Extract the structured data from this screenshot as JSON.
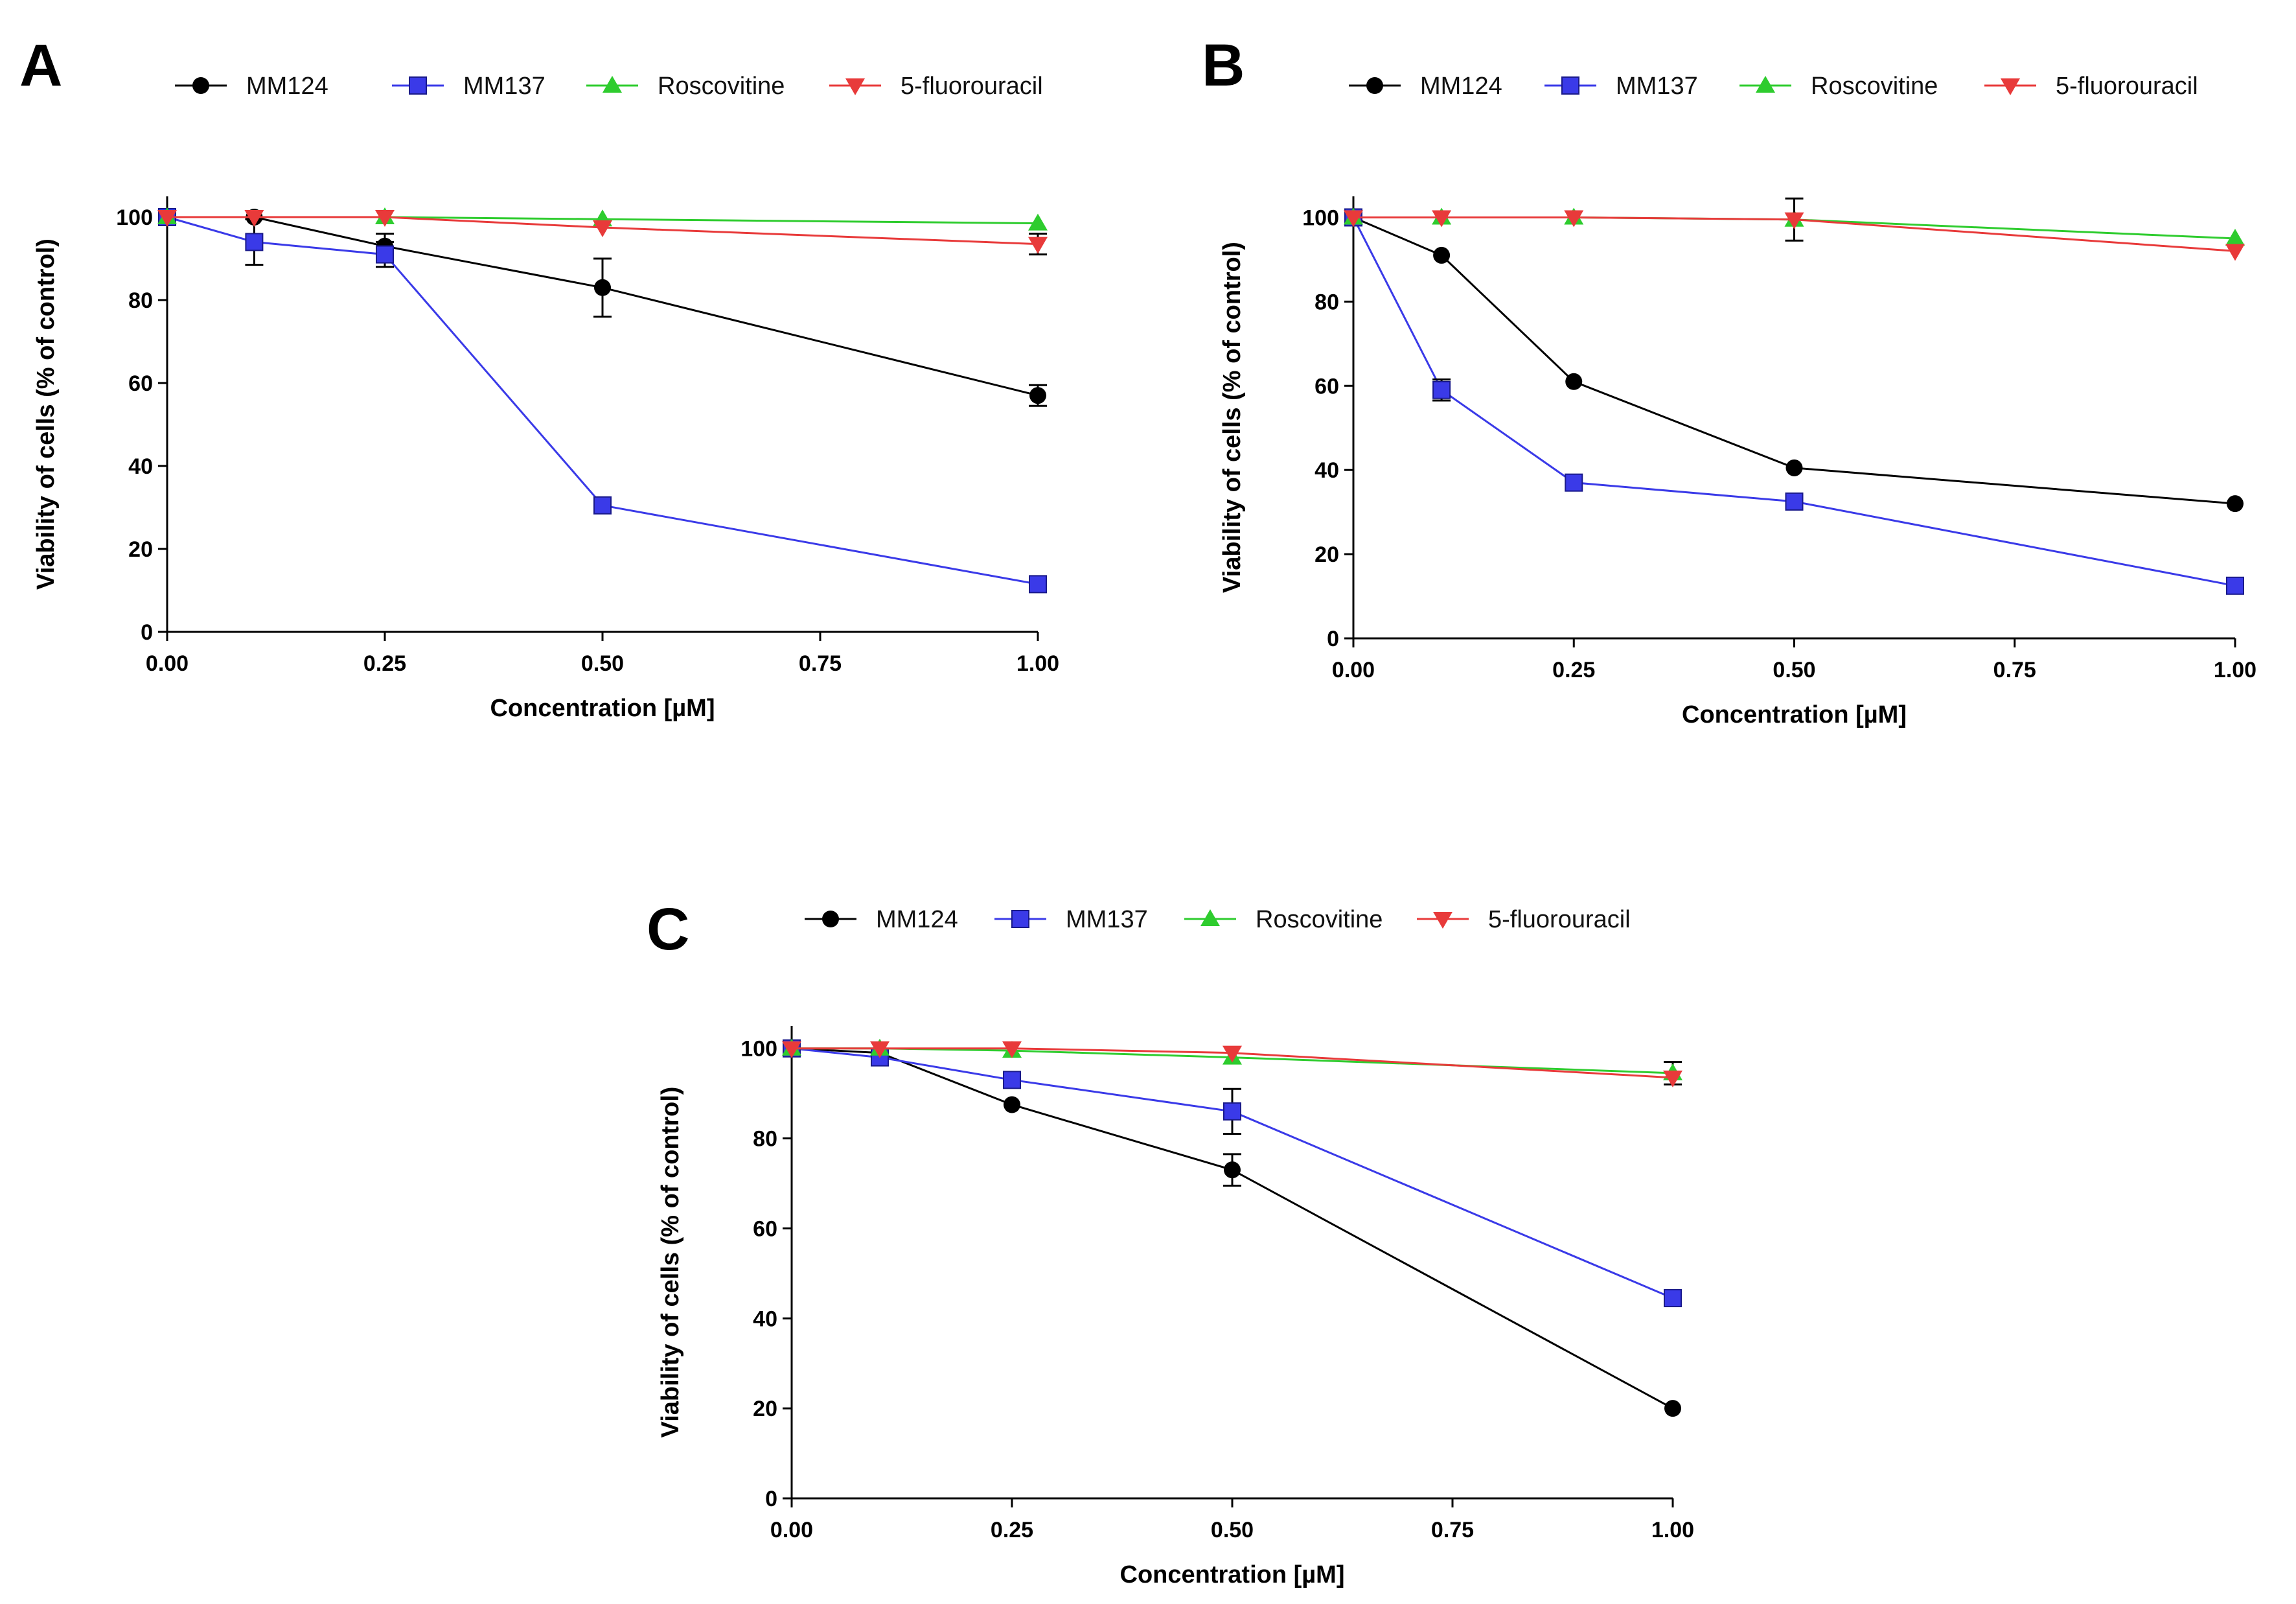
{
  "chart_data": [
    {
      "type": "line",
      "panel_label": "A",
      "xlabel": "Concentration [µM]",
      "ylabel": "Viability of cells (% of control)",
      "xlim": [
        0,
        1
      ],
      "ylim": [
        0,
        105
      ],
      "x_ticks": [
        0,
        0.25,
        0.5,
        0.75,
        1
      ],
      "x_tick_labels": [
        "0.00",
        "0.25",
        "0.50",
        "0.75",
        "1.00"
      ],
      "y_ticks": [
        0,
        20,
        40,
        60,
        80,
        100
      ],
      "y_tick_labels": [
        "0",
        "20",
        "40",
        "60",
        "80",
        "100"
      ],
      "legend_position": "top",
      "series": [
        {
          "name": "MM124",
          "color": "#000000",
          "marker": "circle",
          "x": [
            0,
            0.1,
            0.25,
            0.5,
            1
          ],
          "values": [
            100,
            100,
            93,
            83,
            57
          ],
          "errors": [
            0,
            0,
            3,
            7,
            2.5
          ]
        },
        {
          "name": "MM137",
          "color": "#3a3ae8",
          "marker": "square",
          "x": [
            0,
            0.1,
            0.25,
            0.5,
            1
          ],
          "values": [
            100,
            94,
            91,
            30.5,
            11.5
          ],
          "errors": [
            0,
            5.5,
            3,
            0,
            0
          ]
        },
        {
          "name": "Roscovitine",
          "color": "#2ecc2e",
          "marker": "triangle-up",
          "x": [
            0,
            0.25,
            0.5,
            1
          ],
          "values": [
            100,
            100,
            99.5,
            98.5
          ],
          "errors": [
            0,
            0,
            0,
            0
          ]
        },
        {
          "name": "5-fluorouracil",
          "color": "#e83a3a",
          "marker": "triangle-down",
          "x": [
            0,
            0.1,
            0.25,
            0.5,
            1
          ],
          "values": [
            100,
            100,
            100,
            97.5,
            93.5
          ],
          "errors": [
            0,
            0,
            0,
            0,
            2.5
          ]
        }
      ]
    },
    {
      "type": "line",
      "panel_label": "B",
      "xlabel": "Concentration [µM]",
      "ylabel": "Viability of cells (% of control)",
      "xlim": [
        0,
        1
      ],
      "ylim": [
        0,
        105
      ],
      "x_ticks": [
        0,
        0.25,
        0.5,
        0.75,
        1
      ],
      "x_tick_labels": [
        "0.00",
        "0.25",
        "0.50",
        "0.75",
        "1.00"
      ],
      "y_ticks": [
        0,
        20,
        40,
        60,
        80,
        100
      ],
      "y_tick_labels": [
        "0",
        "20",
        "40",
        "60",
        "80",
        "100"
      ],
      "legend_position": "top",
      "series": [
        {
          "name": "MM124",
          "color": "#000000",
          "marker": "circle",
          "x": [
            0,
            0.1,
            0.25,
            0.5,
            1
          ],
          "values": [
            100,
            91,
            61,
            40.5,
            32
          ],
          "errors": [
            0,
            0,
            0,
            0,
            0
          ]
        },
        {
          "name": "MM137",
          "color": "#3a3ae8",
          "marker": "square",
          "x": [
            0,
            0.1,
            0.25,
            0.5,
            1
          ],
          "values": [
            100,
            59,
            37,
            32.5,
            12.5
          ],
          "errors": [
            0,
            2.5,
            0,
            0,
            1.5
          ]
        },
        {
          "name": "Roscovitine",
          "color": "#2ecc2e",
          "marker": "triangle-up",
          "x": [
            0,
            0.1,
            0.25,
            0.5,
            1
          ],
          "values": [
            100,
            100,
            100,
            99.5,
            95
          ],
          "errors": [
            0,
            0,
            0,
            0,
            0
          ]
        },
        {
          "name": "5-fluorouracil",
          "color": "#e83a3a",
          "marker": "triangle-down",
          "x": [
            0,
            0.1,
            0.25,
            0.5,
            1
          ],
          "values": [
            100,
            100,
            100,
            99.5,
            92
          ],
          "errors": [
            0,
            0,
            0,
            5,
            0
          ]
        }
      ]
    },
    {
      "type": "line",
      "panel_label": "C",
      "xlabel": "Concentration [µM]",
      "ylabel": "Viability of cells (% of control)",
      "xlim": [
        0,
        1
      ],
      "ylim": [
        0,
        105
      ],
      "x_ticks": [
        0,
        0.25,
        0.5,
        0.75,
        1
      ],
      "x_tick_labels": [
        "0.00",
        "0.25",
        "0.50",
        "0.75",
        "1.00"
      ],
      "y_ticks": [
        0,
        20,
        40,
        60,
        80,
        100
      ],
      "y_tick_labels": [
        "0",
        "20",
        "40",
        "60",
        "80",
        "100"
      ],
      "legend_position": "top",
      "series": [
        {
          "name": "MM124",
          "color": "#000000",
          "marker": "circle",
          "x": [
            0,
            0.1,
            0.25,
            0.5,
            1
          ],
          "values": [
            100,
            99,
            87.5,
            73,
            20
          ],
          "errors": [
            0,
            0,
            0,
            3.5,
            0
          ]
        },
        {
          "name": "MM137",
          "color": "#3a3ae8",
          "marker": "square",
          "x": [
            0,
            0.1,
            0.25,
            0.5,
            1
          ],
          "values": [
            100,
            98,
            93,
            86,
            44.5
          ],
          "errors": [
            0,
            0,
            0,
            5,
            0
          ]
        },
        {
          "name": "Roscovitine",
          "color": "#2ecc2e",
          "marker": "triangle-up",
          "x": [
            0,
            0.1,
            0.25,
            0.5,
            1
          ],
          "values": [
            100,
            100,
            99.5,
            98,
            94.5
          ],
          "errors": [
            0,
            0,
            0,
            0,
            2.5
          ]
        },
        {
          "name": "5-fluorouracil",
          "color": "#e83a3a",
          "marker": "triangle-down",
          "x": [
            0,
            0.1,
            0.25,
            0.5,
            1
          ],
          "values": [
            100,
            100,
            100,
            99,
            93.5
          ],
          "errors": [
            0,
            0,
            0,
            0,
            0
          ]
        }
      ]
    }
  ]
}
